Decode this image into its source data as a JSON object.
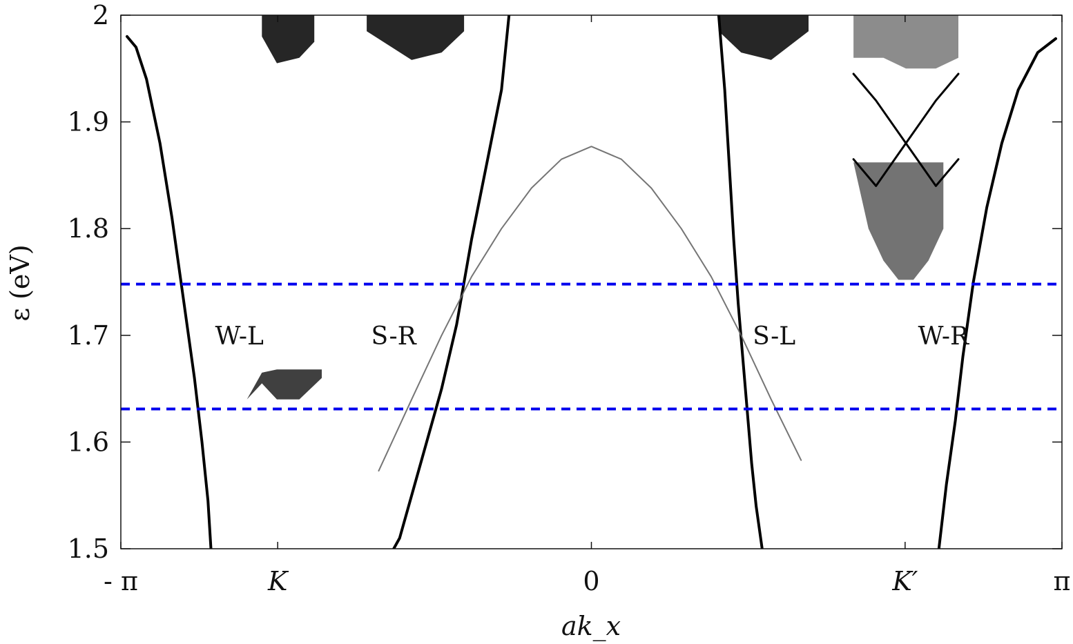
{
  "chart_data": {
    "type": "line",
    "xlabel": "ak_x",
    "ylabel": "ε (eV)",
    "xlim": [
      -3.14159,
      3.14159
    ],
    "ylim": [
      1.5,
      2.0
    ],
    "grid": false,
    "x_ticks": [
      {
        "value": -3.14159,
        "label": "- π"
      },
      {
        "value": -2.0944,
        "label": "K"
      },
      {
        "value": 0,
        "label": "0"
      },
      {
        "value": 2.0944,
        "label": "K′"
      },
      {
        "value": 3.14159,
        "label": "π"
      }
    ],
    "y_ticks": [
      {
        "value": 1.5,
        "label": "1.5"
      },
      {
        "value": 1.6,
        "label": "1.6"
      },
      {
        "value": 1.7,
        "label": "1.7"
      },
      {
        "value": 1.8,
        "label": "1.8"
      },
      {
        "value": 1.9,
        "label": "1.9"
      },
      {
        "value": 2.0,
        "label": "2"
      }
    ],
    "reference_lines": [
      {
        "y": 1.748,
        "color": "#0000ee",
        "style": "dashed"
      },
      {
        "y": 1.631,
        "color": "#0000ee",
        "style": "dashed"
      }
    ],
    "annotations": [
      {
        "text": "W-L",
        "x": -2.35,
        "y": 1.7
      },
      {
        "text": "S-R",
        "x": -1.32,
        "y": 1.7
      },
      {
        "text": "S-L",
        "x": 1.22,
        "y": 1.7
      },
      {
        "text": "W-R",
        "x": 2.35,
        "y": 1.7
      }
    ],
    "series": [
      {
        "color": "#000000",
        "width": 4,
        "opacity": 1,
        "x": [
          -3.1,
          -3.04,
          -2.97,
          -2.88,
          -2.8,
          -2.72,
          -2.65,
          -2.6,
          -2.56,
          -2.54
        ],
        "y": [
          1.98,
          1.97,
          1.94,
          1.88,
          1.81,
          1.73,
          1.66,
          1.6,
          1.545,
          1.5
        ]
      },
      {
        "color": "#000000",
        "width": 4,
        "opacity": 1,
        "x": [
          -0.55,
          -0.6,
          -0.7,
          -0.8,
          -0.9,
          -1.0,
          -1.1,
          -1.2,
          -1.28,
          -1.32
        ],
        "y": [
          2.0,
          1.93,
          1.86,
          1.79,
          1.71,
          1.65,
          1.6,
          1.55,
          1.51,
          1.5
        ]
      },
      {
        "color": "#000000",
        "width": 4,
        "opacity": 1,
        "x": [
          0.85,
          0.89,
          0.92,
          0.95,
          0.98,
          1.01,
          1.04,
          1.07,
          1.1,
          1.14
        ],
        "y": [
          2.0,
          1.93,
          1.86,
          1.79,
          1.73,
          1.68,
          1.63,
          1.58,
          1.54,
          1.5
        ]
      },
      {
        "color": "#000000",
        "width": 4,
        "opacity": 1,
        "x": [
          2.32,
          2.37,
          2.43,
          2.48,
          2.55,
          2.64,
          2.74,
          2.85,
          2.98,
          3.1
        ],
        "y": [
          1.5,
          1.56,
          1.62,
          1.68,
          1.75,
          1.82,
          1.88,
          1.93,
          1.965,
          1.978
        ]
      },
      {
        "color": "#666666",
        "width": 2,
        "opacity": 0.9,
        "x": [
          -1.42,
          -1.2,
          -1.0,
          -0.8,
          -0.6,
          -0.4,
          -0.2,
          0.0,
          0.2,
          0.4,
          0.6,
          0.8,
          1.0,
          1.2,
          1.4
        ],
        "y": [
          1.573,
          1.64,
          1.7,
          1.755,
          1.8,
          1.838,
          1.865,
          1.877,
          1.865,
          1.838,
          1.8,
          1.755,
          1.7,
          1.64,
          1.583
        ]
      },
      {
        "color": "#000000",
        "width": 3,
        "opacity": 1,
        "x": [
          1.75,
          1.9,
          2.1,
          2.3,
          2.45
        ],
        "y": [
          1.945,
          1.92,
          1.88,
          1.84,
          1.865
        ]
      },
      {
        "color": "#000000",
        "width": 3,
        "opacity": 1,
        "x": [
          1.75,
          1.9,
          2.1,
          2.3,
          2.45
        ],
        "y": [
          1.865,
          1.84,
          1.88,
          1.92,
          1.945
        ]
      }
    ],
    "shaded_regions": [
      {
        "label": "",
        "x": [
          -2.3,
          -2.2,
          -2.1,
          -1.95,
          -1.8,
          -1.8,
          -1.95,
          -2.1,
          -2.2,
          -2.3
        ],
        "y": [
          1.64,
          1.665,
          1.668,
          1.668,
          1.668,
          1.66,
          1.64,
          1.64,
          1.655,
          1.64
        ],
        "opacity": 0.75
      },
      {
        "label": "",
        "x": [
          1.75,
          1.85,
          1.95,
          2.05,
          2.15,
          2.25,
          2.35,
          2.35,
          2.25,
          2.15,
          2.05,
          1.95,
          1.85,
          1.75
        ],
        "y": [
          1.862,
          1.862,
          1.862,
          1.862,
          1.862,
          1.862,
          1.862,
          1.8,
          1.77,
          1.752,
          1.752,
          1.77,
          1.8,
          1.862
        ],
        "opacity": 0.55
      },
      {
        "label": "",
        "x": [
          -2.2,
          -2.1,
          -1.95,
          -1.85,
          -1.85,
          -1.95,
          -2.1,
          -2.2
        ],
        "y": [
          2.0,
          2.0,
          2.0,
          2.0,
          1.975,
          1.96,
          1.955,
          1.98
        ],
        "opacity": 0.85
      },
      {
        "label": "",
        "x": [
          -1.5,
          -1.2,
          -1.0,
          -0.85,
          -0.85,
          -1.0,
          -1.2,
          -1.5
        ],
        "y": [
          2.0,
          2.0,
          2.0,
          2.0,
          1.985,
          1.965,
          1.958,
          1.985
        ],
        "opacity": 0.85
      },
      {
        "label": "",
        "x": [
          0.85,
          1.0,
          1.2,
          1.45,
          1.45,
          1.2,
          1.0,
          0.85
        ],
        "y": [
          2.0,
          2.0,
          2.0,
          2.0,
          1.985,
          1.958,
          1.965,
          1.985
        ],
        "opacity": 0.85
      },
      {
        "label": "",
        "x": [
          1.75,
          1.95,
          2.2,
          2.45,
          2.45,
          2.3,
          2.1,
          1.95,
          1.75
        ],
        "y": [
          2.0,
          2.0,
          2.0,
          2.0,
          1.96,
          1.95,
          1.95,
          1.96,
          1.96
        ],
        "opacity": 0.45
      }
    ]
  }
}
